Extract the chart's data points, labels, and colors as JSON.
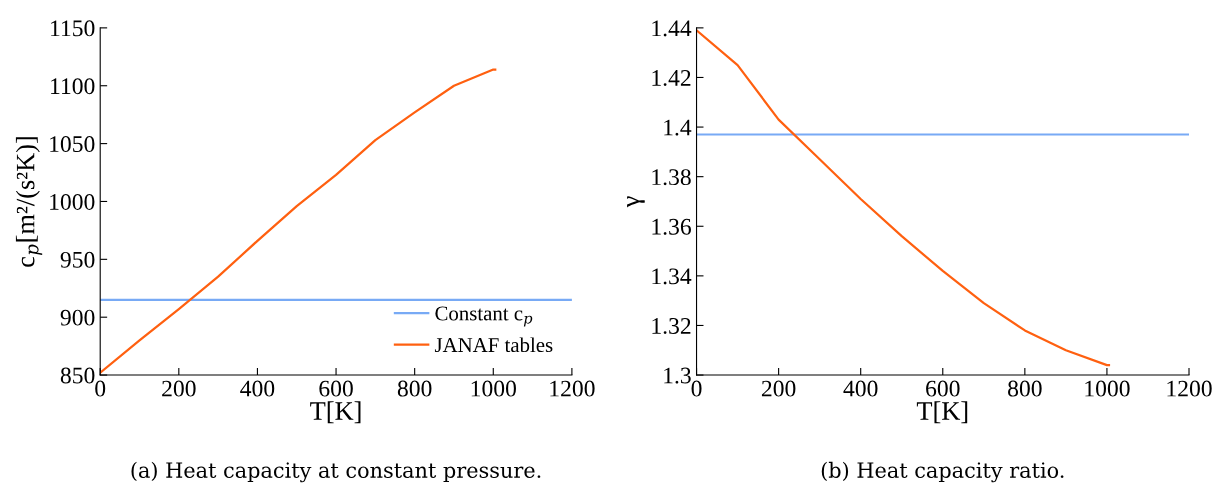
{
  "chart_data": [
    {
      "type": "line",
      "xlabel": "T[K]",
      "ylabel": "c$_{p}$[m²/(s²K)]",
      "xlim": [
        0,
        1200
      ],
      "xticks": [
        0,
        200,
        400,
        600,
        800,
        1000,
        1200
      ],
      "ylim": [
        850,
        1150
      ],
      "yticks": [
        850,
        900,
        950,
        1000,
        1050,
        1100,
        1150
      ],
      "grid": false,
      "legend": "bottom right",
      "series": [
        {
          "name": "Constant c$_{p}$",
          "color": "#78aaf5",
          "x": [
            0,
            1200
          ],
          "values": [
            915,
            915
          ]
        },
        {
          "name": "JANAF tables",
          "color": "#ff6010",
          "x": [
            0,
            100,
            200,
            300,
            400,
            500,
            600,
            700,
            800,
            900,
            1000,
            1005
          ],
          "values": [
            852,
            880,
            907,
            935,
            966,
            996,
            1023,
            1053,
            1077,
            1100,
            1114,
            1114
          ]
        }
      ],
      "annotations": [
        "(a) Heat capacity at constant pressure."
      ]
    },
    {
      "type": "line",
      "xlabel": "T[K]",
      "ylabel": "γ",
      "xlim": [
        0,
        1200
      ],
      "xticks": [
        0,
        200,
        400,
        600,
        800,
        1000,
        1200
      ],
      "ylim": [
        1.3,
        1.44
      ],
      "yticks": [
        1.3,
        1.32,
        1.34,
        1.36,
        1.38,
        1.4,
        1.42,
        1.44
      ],
      "grid": false,
      "series": [
        {
          "color": "#78aaf5",
          "x": [
            0,
            1200
          ],
          "values": [
            1.397,
            1.397
          ]
        },
        {
          "color": "#ff6010",
          "x": [
            0,
            100,
            200,
            300,
            400,
            500,
            600,
            700,
            800,
            900,
            1000,
            1005
          ],
          "values": [
            1.439,
            1.425,
            1.403,
            1.387,
            1.371,
            1.356,
            1.342,
            1.329,
            1.318,
            1.31,
            1.304,
            1.304
          ]
        }
      ],
      "annotations": [
        "(b) Heat capacity ratio."
      ]
    }
  ]
}
